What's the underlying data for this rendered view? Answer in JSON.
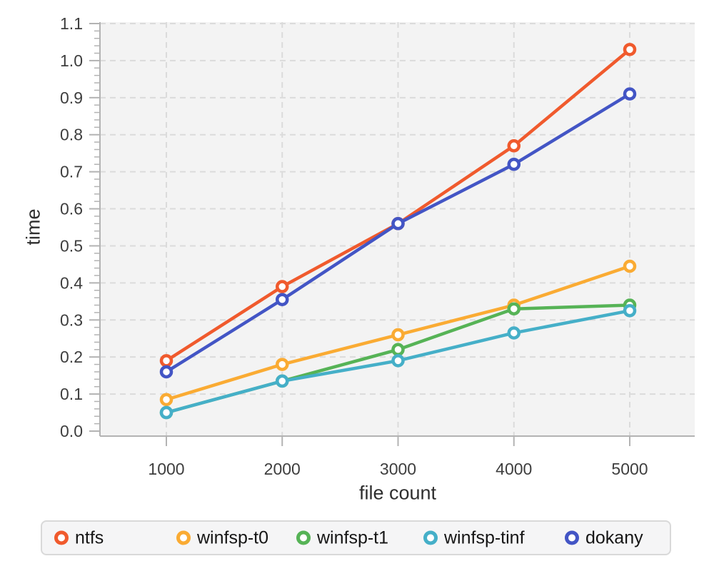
{
  "chart_data": {
    "type": "line",
    "title": "",
    "xlabel": "file count",
    "ylabel": "time",
    "x": [
      1000,
      2000,
      3000,
      4000,
      5000
    ],
    "series": [
      {
        "name": "ntfs",
        "color": "#F05A2D",
        "values": [
          0.19,
          0.39,
          0.56,
          0.77,
          1.03
        ]
      },
      {
        "name": "winfsp-t0",
        "color": "#FAAB33",
        "values": [
          0.085,
          0.18,
          0.26,
          0.34,
          0.445
        ]
      },
      {
        "name": "winfsp-t1",
        "color": "#56B356",
        "values": [
          0.05,
          0.135,
          0.22,
          0.33,
          0.34
        ]
      },
      {
        "name": "winfsp-tinf",
        "color": "#45AFC8",
        "values": [
          0.05,
          0.135,
          0.19,
          0.265,
          0.325
        ]
      },
      {
        "name": "dokany",
        "color": "#4355C5",
        "values": [
          0.16,
          0.355,
          0.56,
          0.72,
          0.91
        ]
      }
    ],
    "ylim": [
      0,
      1.1
    ],
    "ytick_step": 0.1,
    "y_minor_step": 0.02,
    "grid": true,
    "grid_style": "dashed",
    "legend_position": "bottom",
    "marker": "open-circle"
  },
  "style_colors": {
    "plot_background": "#f3f3f3",
    "gridline": "#dbdbdb",
    "axis_line": "#b3b3b3",
    "tick_label": "#3e3e3e",
    "axis_title": "#2f2f2f",
    "legend_background": "#f5f5f6",
    "legend_border": "#d9d9d9",
    "legend_text": "#151515"
  }
}
